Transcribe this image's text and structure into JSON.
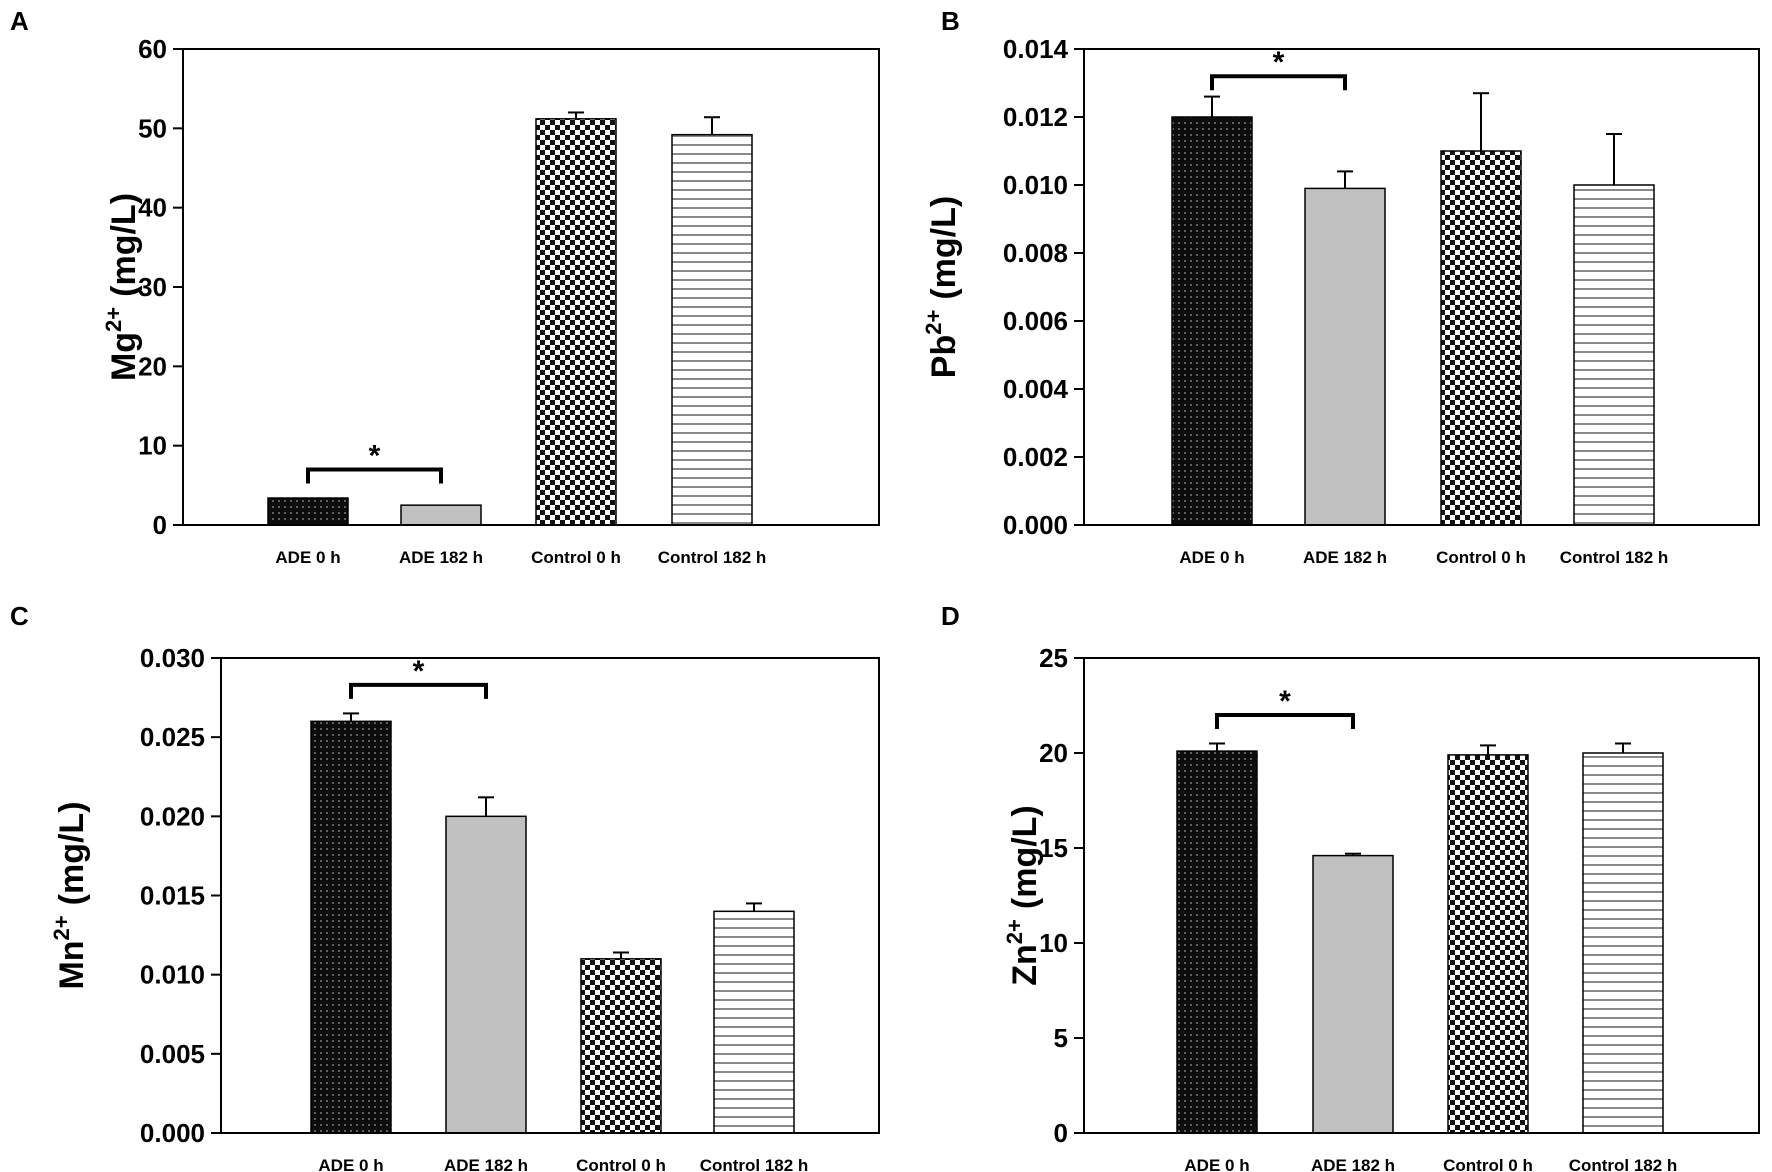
{
  "chart_data": [
    {
      "type": "bar",
      "panel": "A",
      "ylabel_base": "Mg",
      "ylabel_sup": "2+",
      "ylabel_unit": "(mg/L)",
      "categories": [
        "ADE 0 h",
        "ADE 182 h",
        "Control 0 h",
        "Control 182 h"
      ],
      "values": [
        3.4,
        2.5,
        51.2,
        49.2
      ],
      "errors": [
        0.0,
        0.0,
        0.8,
        2.2
      ],
      "ylim": [
        0,
        60
      ],
      "yticks": [
        "0",
        "10",
        "20",
        "30",
        "40",
        "50",
        "60"
      ],
      "significance": {
        "from": 0,
        "to": 1,
        "label": "*",
        "y": 7.0
      }
    },
    {
      "type": "bar",
      "panel": "B",
      "ylabel_base": "Pb",
      "ylabel_sup": "2+",
      "ylabel_unit": "(mg/L)",
      "categories": [
        "ADE 0 h",
        "ADE 182 h",
        "Control 0 h",
        "Control 182 h"
      ],
      "values": [
        0.012,
        0.0099,
        0.011,
        0.01
      ],
      "errors": [
        0.0006,
        0.0005,
        0.0017,
        0.0015
      ],
      "ylim": [
        0,
        0.014
      ],
      "yticks": [
        "0.000",
        "0.002",
        "0.004",
        "0.006",
        "0.008",
        "0.010",
        "0.012",
        "0.014"
      ],
      "significance": {
        "from": 0,
        "to": 1,
        "label": "*",
        "y": 0.0132
      }
    },
    {
      "type": "bar",
      "panel": "C",
      "ylabel_base": "Mn",
      "ylabel_sup": "2+",
      "ylabel_unit": "(mg/L)",
      "categories": [
        "ADE 0 h",
        "ADE 182 h",
        "Control 0 h",
        "Control 182 h"
      ],
      "values": [
        0.026,
        0.02,
        0.011,
        0.014
      ],
      "errors": [
        0.0005,
        0.0012,
        0.0004,
        0.0005
      ],
      "ylim": [
        0,
        0.03
      ],
      "yticks": [
        "0.000",
        "0.005",
        "0.010",
        "0.015",
        "0.020",
        "0.025",
        "0.030"
      ],
      "significance": {
        "from": 0,
        "to": 1,
        "label": "*",
        "y": 0.0283
      }
    },
    {
      "type": "bar",
      "panel": "D",
      "ylabel_base": "Zn",
      "ylabel_sup": "2+",
      "ylabel_unit": "(mg/L)",
      "categories": [
        "ADE 0 h",
        "ADE 182 h",
        "Control 0 h",
        "Control 182 h"
      ],
      "values": [
        20.1,
        14.6,
        19.9,
        20.0
      ],
      "errors": [
        0.4,
        0.1,
        0.5,
        0.5
      ],
      "ylim": [
        0,
        25
      ],
      "yticks": [
        "0",
        "5",
        "10",
        "15",
        "20",
        "25"
      ],
      "significance": {
        "from": 0,
        "to": 1,
        "label": "*",
        "y": 22.0
      }
    }
  ],
  "bar_styles": [
    "dotted-black",
    "solid-grey",
    "checkered",
    "horizontal-stripes"
  ],
  "colors": {
    "axis": "#000000",
    "dark_bar": "#111111",
    "grey_bar": "#c0c0c0",
    "stripe": "#8a8a8a"
  }
}
